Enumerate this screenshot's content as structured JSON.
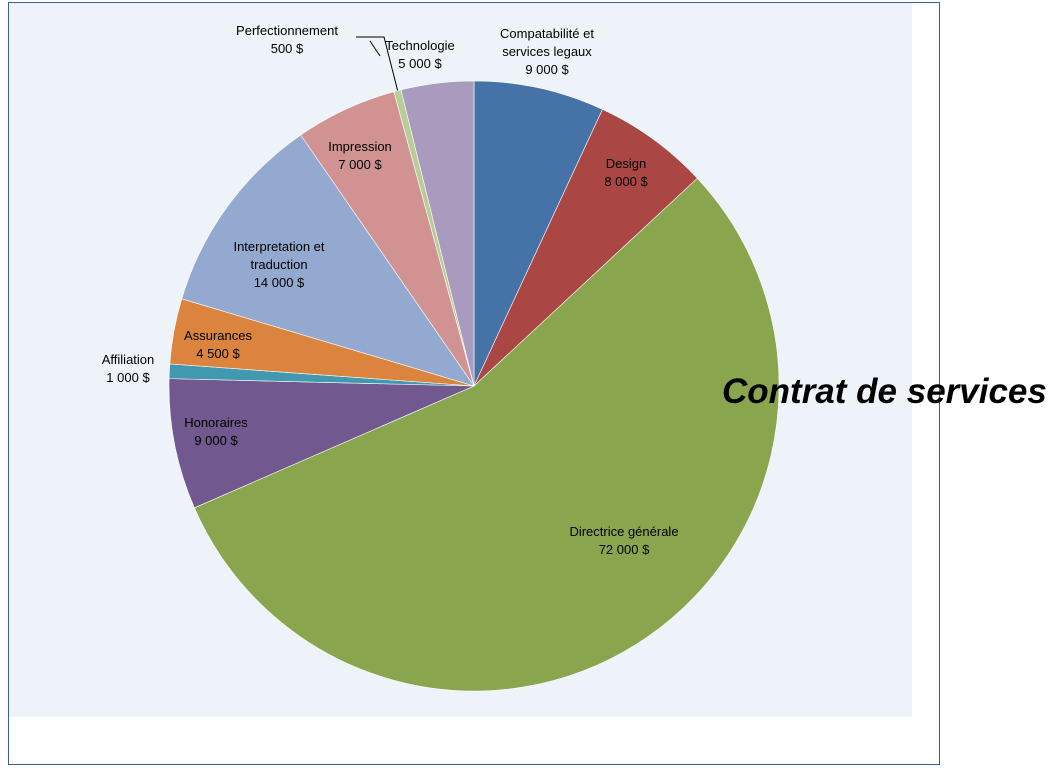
{
  "chart_data": {
    "type": "pie",
    "title": "Contrat de services",
    "categories": [
      "Compatabilité et services legaux",
      "Design",
      "Directrice générale",
      "Honoraires",
      "Affiliation",
      "Assurances",
      "Interpretation et traduction",
      "Impression",
      "Perfectionnement",
      "Technologie"
    ],
    "values": [
      9000,
      8000,
      72000,
      9000,
      1000,
      4500,
      14000,
      7000,
      500,
      5000
    ],
    "value_labels": [
      "9 000 $",
      "8 000 $",
      "72 000 $",
      "9 000 $",
      "1 000 $",
      "4 500 $",
      "14 000 $",
      "7 000 $",
      "500 $",
      "5 000 $"
    ],
    "colors": [
      "#4572a7",
      "#aa4643",
      "#89a54e",
      "#71588f",
      "#4198af",
      "#db843d",
      "#93a9cf",
      "#d19392",
      "#b9cd96",
      "#a99bbd"
    ]
  }
}
